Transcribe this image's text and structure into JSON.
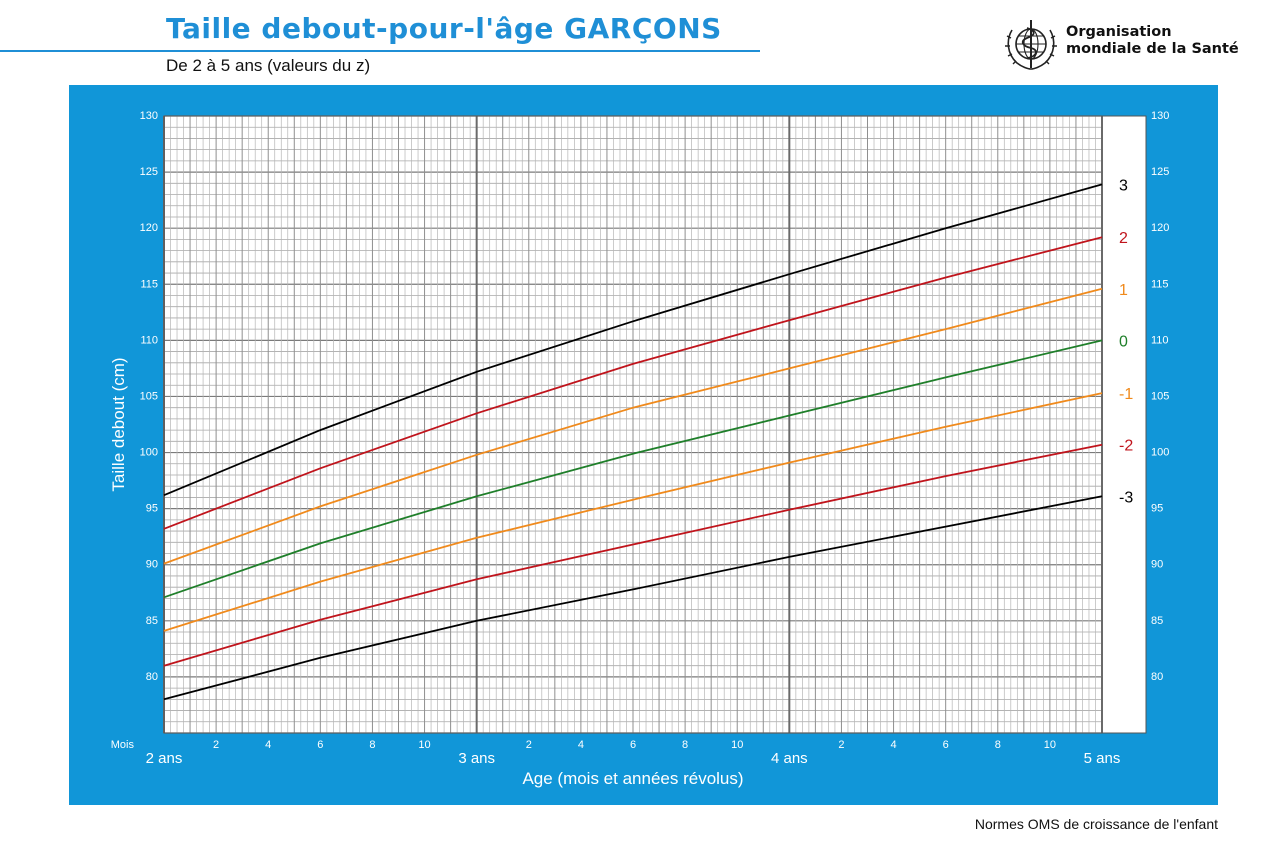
{
  "header": {
    "title": "Taille debout-pour-l'âge  GARÇONS",
    "subtitle": "De 2 à 5 ans (valeurs du z)",
    "org_line1": "Organisation",
    "org_line2": "mondiale de la Santé",
    "emblem": "who-emblem-icon"
  },
  "footer": {
    "text": "Normes OMS de croissance de l'enfant"
  },
  "colors": {
    "panel": "#1196d8",
    "title": "#1f8fd6",
    "z3": "#000000",
    "z2": "#c0141c",
    "z1": "#f08a1c",
    "z0": "#1f7f2a"
  },
  "chart_data": {
    "type": "line",
    "ylabel": "Taille debout (cm)",
    "xlabel": "Age (mois et années révolus)",
    "x_corner_label": "Mois",
    "xlim": [
      24,
      60
    ],
    "ylim": [
      75,
      130
    ],
    "y_ticks": [
      80,
      85,
      90,
      95,
      100,
      105,
      110,
      115,
      120,
      125,
      130
    ],
    "x_month_ticks": [
      {
        "x": 26,
        "label": "2"
      },
      {
        "x": 28,
        "label": "4"
      },
      {
        "x": 30,
        "label": "6"
      },
      {
        "x": 32,
        "label": "8"
      },
      {
        "x": 34,
        "label": "10"
      },
      {
        "x": 38,
        "label": "2"
      },
      {
        "x": 40,
        "label": "4"
      },
      {
        "x": 42,
        "label": "6"
      },
      {
        "x": 44,
        "label": "8"
      },
      {
        "x": 46,
        "label": "10"
      },
      {
        "x": 50,
        "label": "2"
      },
      {
        "x": 52,
        "label": "4"
      },
      {
        "x": 54,
        "label": "6"
      },
      {
        "x": 56,
        "label": "8"
      },
      {
        "x": 58,
        "label": "10"
      }
    ],
    "x_year_ticks": [
      {
        "x": 24,
        "label": "2 ans"
      },
      {
        "x": 36,
        "label": "3 ans"
      },
      {
        "x": 48,
        "label": "4 ans"
      },
      {
        "x": 60,
        "label": "5 ans"
      }
    ],
    "grid": true,
    "x": [
      24,
      30,
      36,
      42,
      48,
      54,
      60
    ],
    "series": [
      {
        "name": "3",
        "color": "#000000",
        "values": [
          96.2,
          102.0,
          107.2,
          111.7,
          115.9,
          120.0,
          123.9
        ]
      },
      {
        "name": "2",
        "color": "#c0141c",
        "values": [
          93.2,
          98.6,
          103.5,
          107.9,
          111.8,
          115.6,
          119.2
        ]
      },
      {
        "name": "1",
        "color": "#f08a1c",
        "values": [
          90.1,
          95.2,
          99.8,
          104.0,
          107.5,
          111.0,
          114.6
        ]
      },
      {
        "name": "0",
        "color": "#1f7f2a",
        "values": [
          87.1,
          91.9,
          96.1,
          99.9,
          103.3,
          106.7,
          110.0
        ]
      },
      {
        "name": "-1",
        "color": "#f08a1c",
        "values": [
          84.1,
          88.5,
          92.4,
          95.8,
          99.1,
          102.3,
          105.3
        ]
      },
      {
        "name": "-2",
        "color": "#c0141c",
        "values": [
          81.0,
          85.1,
          88.7,
          91.8,
          94.9,
          97.9,
          100.7
        ]
      },
      {
        "name": "-3",
        "color": "#000000",
        "values": [
          78.0,
          81.7,
          85.0,
          87.8,
          90.7,
          93.4,
          96.1
        ]
      }
    ]
  }
}
